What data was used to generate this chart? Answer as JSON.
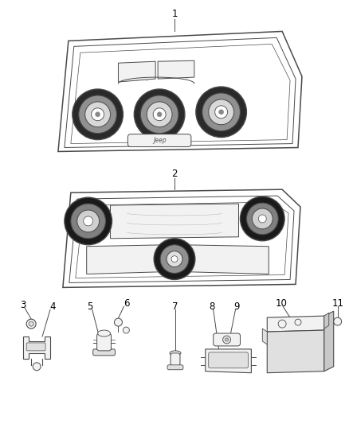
{
  "background_color": "#ffffff",
  "line_color": "#4a4a4a",
  "light_line": "#888888",
  "fill_light": "#f2f2f2",
  "fill_mid": "#e0e0e0",
  "fill_dark": "#c8c8c8",
  "text_color": "#000000",
  "figsize": [
    4.38,
    5.33
  ],
  "dpi": 100
}
